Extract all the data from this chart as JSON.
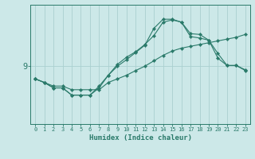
{
  "xlabel": "Humidex (Indice chaleur)",
  "bg_color": "#cce8e8",
  "line_color": "#2a7a6a",
  "grid_color": "#aad0d0",
  "xmin": 0,
  "xmax": 23,
  "ymin": 7.4,
  "ymax": 10.7,
  "ytick_val": 9,
  "line1_x": [
    0,
    1,
    2,
    3,
    4,
    5,
    6,
    7,
    8,
    9,
    10,
    11,
    12,
    13,
    14,
    15,
    16,
    17,
    18,
    19,
    20,
    21,
    22,
    23
  ],
  "line1_y": [
    8.65,
    8.55,
    8.45,
    8.45,
    8.35,
    8.35,
    8.35,
    8.35,
    8.55,
    8.65,
    8.75,
    8.88,
    9.0,
    9.15,
    9.3,
    9.42,
    9.5,
    9.55,
    9.6,
    9.65,
    9.7,
    9.75,
    9.8,
    9.88
  ],
  "line2_x": [
    0,
    1,
    2,
    3,
    4,
    5,
    6,
    7,
    8,
    9,
    10,
    11,
    12,
    13,
    14,
    15,
    16,
    17,
    18,
    19,
    20,
    21,
    22,
    23
  ],
  "line2_y": [
    8.65,
    8.55,
    8.4,
    8.4,
    8.2,
    8.2,
    8.2,
    8.45,
    8.75,
    9.05,
    9.25,
    9.4,
    9.6,
    9.85,
    10.22,
    10.28,
    10.22,
    9.82,
    9.78,
    9.72,
    9.35,
    9.02,
    9.02,
    8.88
  ],
  "line3_x": [
    0,
    1,
    2,
    3,
    4,
    5,
    6,
    7,
    8,
    9,
    10,
    11,
    12,
    13,
    14,
    15,
    16,
    17,
    18,
    19,
    20,
    21,
    22,
    23
  ],
  "line3_y": [
    8.65,
    8.55,
    8.4,
    8.4,
    8.2,
    8.2,
    8.2,
    8.4,
    8.75,
    9.0,
    9.18,
    9.38,
    9.58,
    10.05,
    10.3,
    10.3,
    10.22,
    9.9,
    9.88,
    9.72,
    9.22,
    9.02,
    9.02,
    8.9
  ]
}
